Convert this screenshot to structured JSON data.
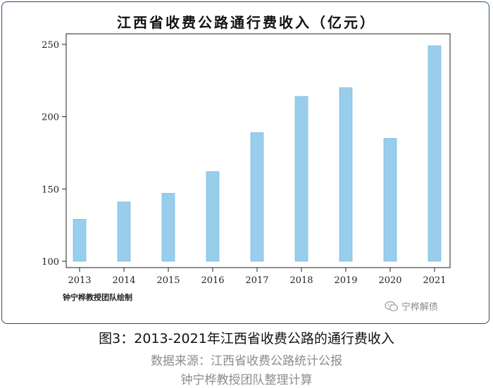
{
  "chart_data": {
    "type": "bar",
    "title": "江西省收费公路通行费收入（亿元）",
    "categories": [
      "2013",
      "2014",
      "2015",
      "2016",
      "2017",
      "2018",
      "2019",
      "2020",
      "2021"
    ],
    "values": [
      129,
      141,
      147,
      162,
      189,
      214,
      220,
      185,
      249
    ],
    "xlabel": "",
    "ylabel": "",
    "ylim": [
      100,
      250
    ],
    "yticks": [
      100,
      150,
      200,
      250
    ],
    "bar_color": "#99cdec",
    "bar_edge_color": "#7fbfe3",
    "grid": false,
    "legend": "none"
  },
  "credit": "钟宁桦教授团队绘制",
  "watermark": "宁桦解债",
  "caption": "图3：2013-2021年江西省收费公路的通行费收入",
  "source": "数据来源：江西省收费公路统计公报",
  "team": "钟宁桦教授团队整理计算"
}
